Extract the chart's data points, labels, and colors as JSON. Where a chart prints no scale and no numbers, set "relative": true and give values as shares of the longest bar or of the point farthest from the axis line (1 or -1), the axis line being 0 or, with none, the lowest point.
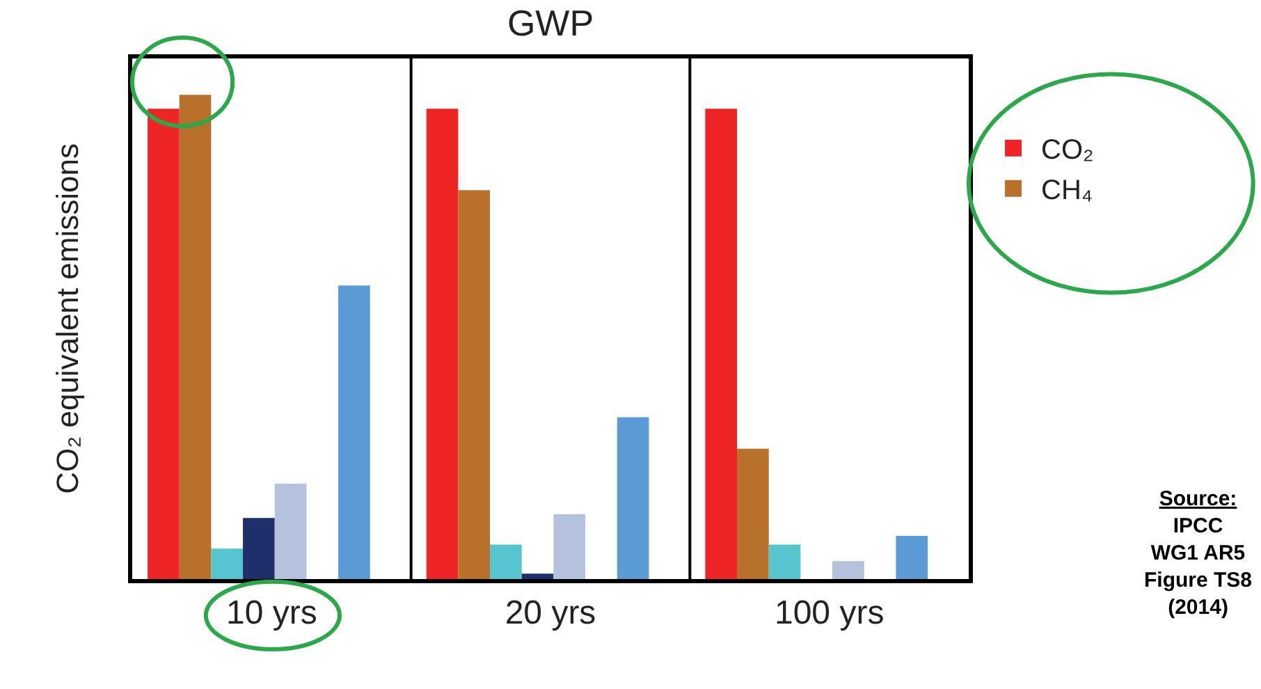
{
  "chart_data": {
    "type": "bar",
    "title": "GWP",
    "ylabel": "CO₂ equivalent emissions",
    "relative": true,
    "legend": "right",
    "categories": [
      "10 yrs",
      "20 yrs",
      "100 yrs"
    ],
    "series": [
      {
        "name": "CO₂",
        "color": "#ee2524",
        "values": [
          0.971,
          0.971,
          0.971
        ]
      },
      {
        "name": "CH₄",
        "color": "#b8702a",
        "values": [
          1.0,
          0.803,
          0.269
        ]
      },
      {
        "color": "#56c5cf",
        "values": [
          0.063,
          0.071,
          0.071
        ]
      },
      {
        "color": "#1f2f6b",
        "values": [
          0.126,
          0.011,
          null
        ]
      },
      {
        "color": "#b4c2de",
        "values": [
          0.197,
          0.134,
          0.037
        ]
      },
      {
        "color": "#5b9bd5",
        "values": [
          0.606,
          0.334,
          0.089
        ]
      }
    ],
    "annotations": [
      "Source:\nIPCC\nWG1 AR5\nFigure TS8\n(2014)"
    ]
  }
}
